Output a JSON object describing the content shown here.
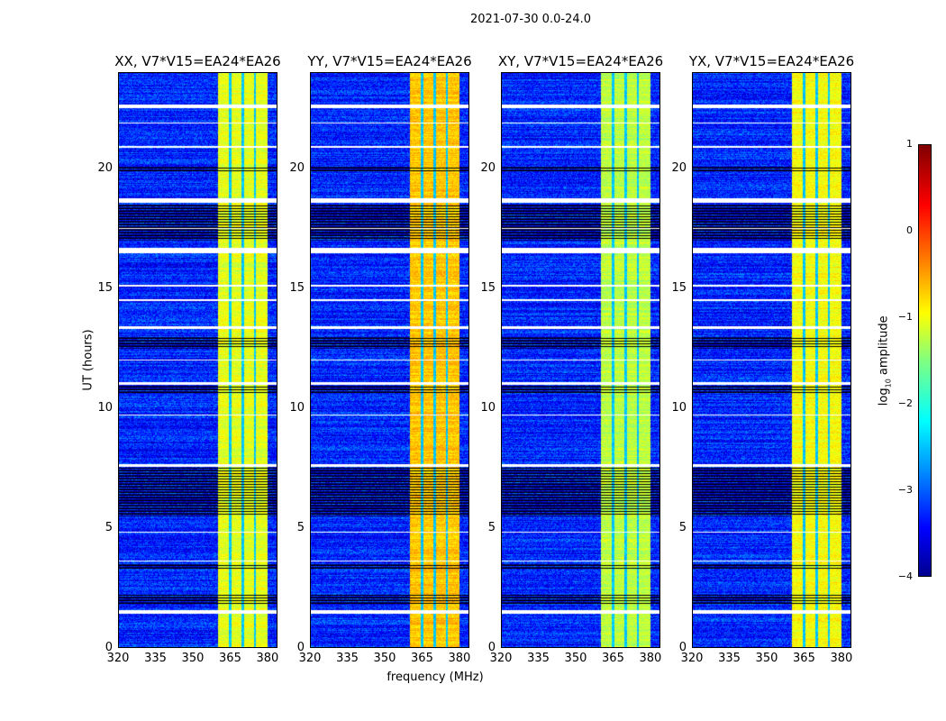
{
  "suptitle": "2021-07-30 0.0-24.0",
  "xlabel": "frequency (MHz)",
  "ylabel": "UT (hours)",
  "colorbar": {
    "label_main": "log",
    "label_sub": "10",
    "label_rest": " amplitude",
    "ticks": [
      "1",
      "0",
      "−1",
      "−2",
      "−3",
      "−4"
    ],
    "range": [
      -4,
      1
    ]
  },
  "chart_data": {
    "type": "heatmap",
    "xlim": [
      320,
      384
    ],
    "ylim": [
      0,
      24
    ],
    "xticks": [
      "320",
      "335",
      "350",
      "365",
      "380"
    ],
    "yticks": [
      "0",
      "5",
      "10",
      "15",
      "20"
    ],
    "colormap": "jet",
    "background_log_amp": -3.2,
    "band_mhz": [
      360,
      380
    ],
    "band_notches_mhz": [
      365,
      370,
      375
    ],
    "blank_hours": [
      [
        22.55,
        22.7
      ],
      [
        21.9,
        21.95
      ],
      [
        20.9,
        20.95
      ],
      [
        18.6,
        18.78
      ],
      [
        17.5,
        17.55
      ],
      [
        16.5,
        16.7
      ],
      [
        15.1,
        15.15
      ],
      [
        14.5,
        14.55
      ],
      [
        13.3,
        13.45
      ],
      [
        12.0,
        12.05
      ],
      [
        11.0,
        11.1
      ],
      [
        9.7,
        9.75
      ],
      [
        7.55,
        7.65
      ],
      [
        4.8,
        4.85
      ],
      [
        3.6,
        3.65
      ],
      [
        1.4,
        1.55
      ]
    ],
    "flagged_dark_hours": [
      [
        19.9,
        20.1
      ],
      [
        17.0,
        18.5
      ],
      [
        12.5,
        13.0
      ],
      [
        10.6,
        11.0
      ],
      [
        5.5,
        7.5
      ],
      [
        3.3,
        3.5
      ],
      [
        1.8,
        2.2
      ]
    ],
    "panels": [
      {
        "title": "XX, V7*V15=EA24*EA26",
        "band_log_amp": -1.0
      },
      {
        "title": "YY, V7*V15=EA24*EA26",
        "band_log_amp": -0.6
      },
      {
        "title": "XY, V7*V15=EA24*EA26",
        "band_log_amp": -1.2
      },
      {
        "title": "YX, V7*V15=EA24*EA26",
        "band_log_amp": -0.9
      }
    ]
  }
}
